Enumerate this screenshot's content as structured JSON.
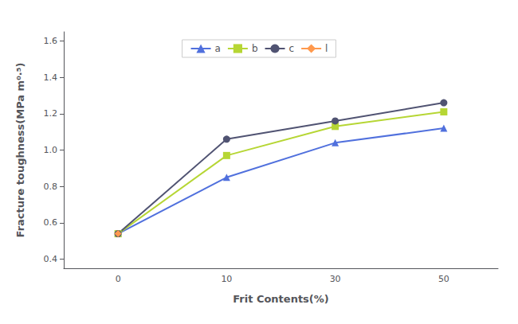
{
  "chart_data": {
    "type": "line",
    "x_label": "Frit Contents(%)",
    "y_label": "Fracture toughness(MPa m⁰·⁵)",
    "categories": [
      "0",
      "10",
      "30",
      "50"
    ],
    "series": [
      {
        "name": "a",
        "marker": "triangle",
        "values": [
          0.54,
          0.85,
          1.04,
          1.12
        ]
      },
      {
        "name": "b",
        "marker": "square",
        "values": [
          0.54,
          0.97,
          1.13,
          1.21
        ]
      },
      {
        "name": "c",
        "marker": "circle",
        "values": [
          0.54,
          1.06,
          1.16,
          1.26
        ]
      },
      {
        "name": "l",
        "marker": "diamond",
        "values": [
          0.54,
          null,
          null,
          null
        ]
      }
    ],
    "ylim": [
      0.35,
      1.65
    ],
    "yticks": [
      0.4,
      0.6,
      0.8,
      {
        "value": 1.0,
        "label": "1.0"
      },
      1.2,
      1.4,
      1.6
    ],
    "grid": false,
    "legend": "upper center"
  }
}
